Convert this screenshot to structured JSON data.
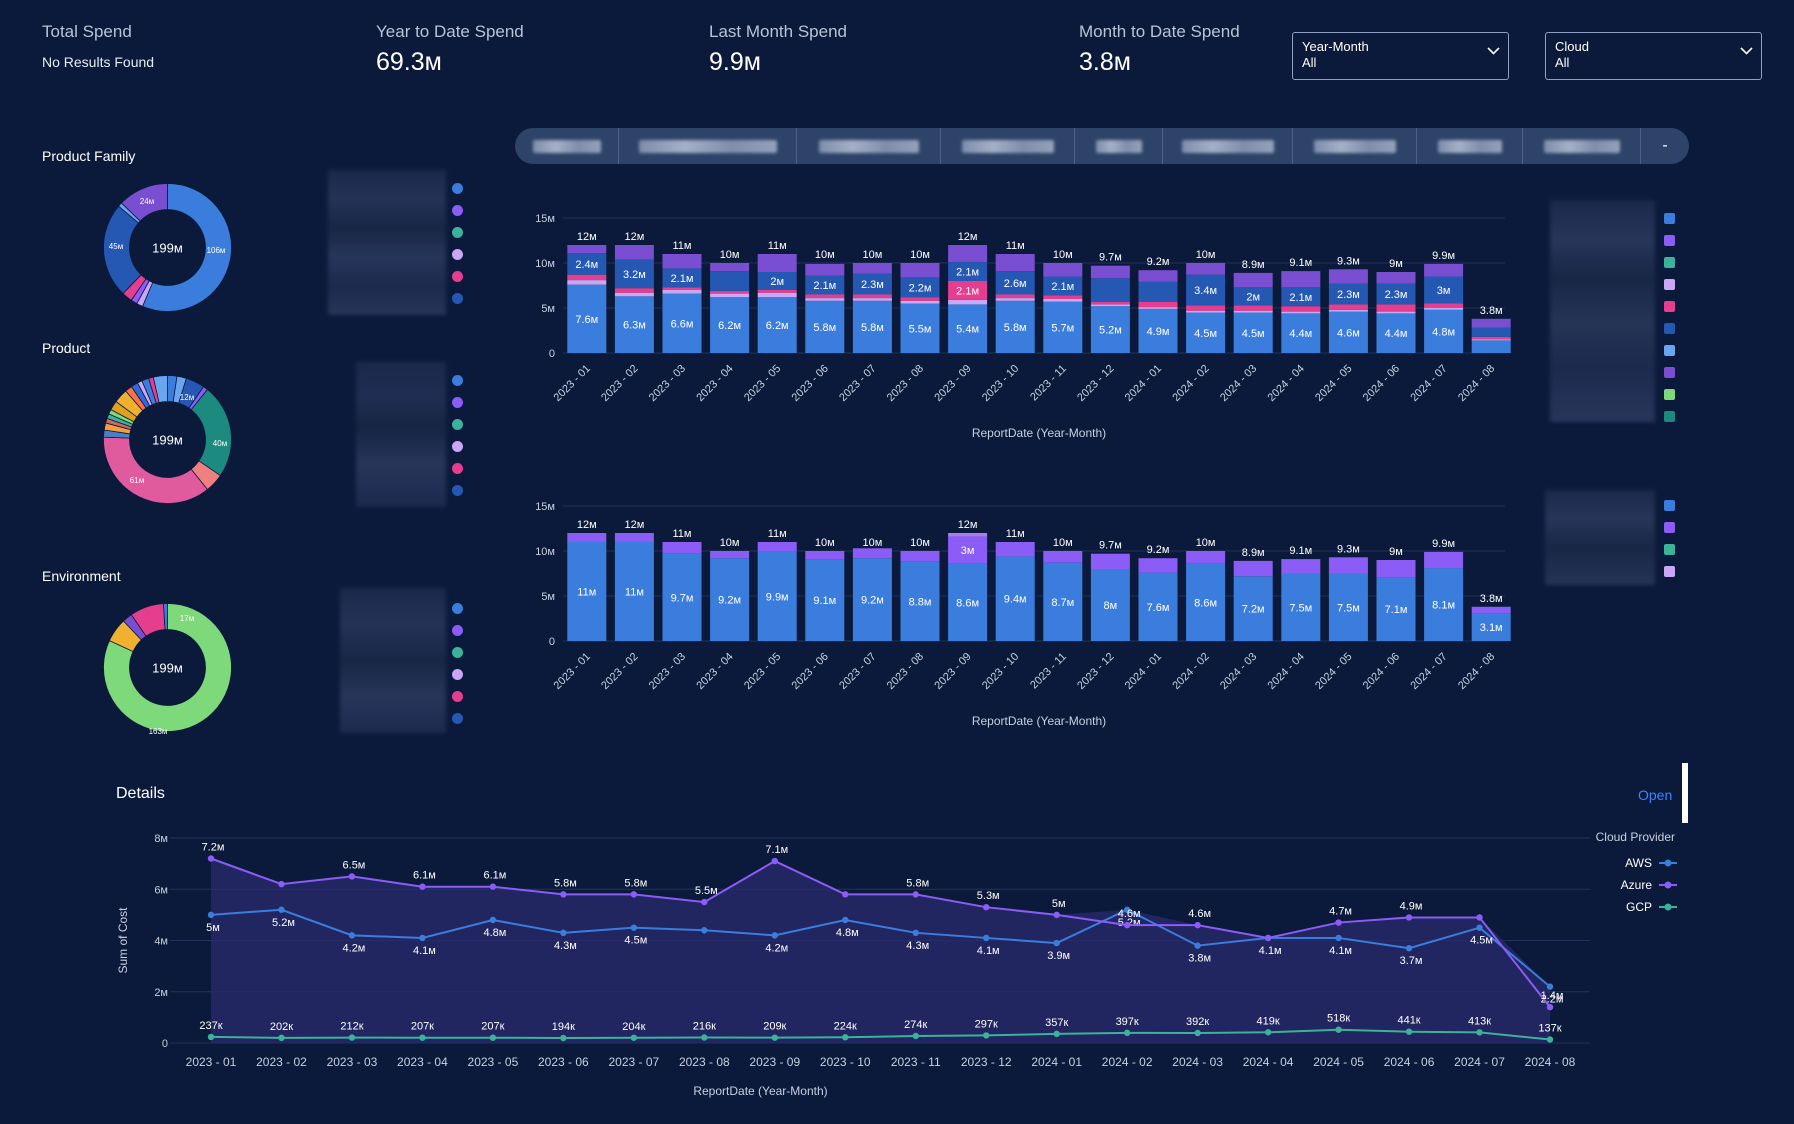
{
  "kpis": [
    {
      "label": "Total Spend",
      "value": "",
      "note": "No Results Found"
    },
    {
      "label": "Year to Date Spend",
      "value": "69.3м"
    },
    {
      "label": "Last Month Spend",
      "value": "9.9м"
    },
    {
      "label": "Month to Date Spend",
      "value": "3.8м"
    }
  ],
  "filters": [
    {
      "label": "Year-Month",
      "value": "All"
    },
    {
      "label": "Cloud",
      "value": "All"
    }
  ],
  "donuts": [
    {
      "title": "Product Family",
      "center": "199м",
      "labels": [
        "106м",
        "45м",
        "24м"
      ]
    },
    {
      "title": "Product",
      "center": "199м",
      "labels": [
        "61м",
        "40м",
        "12м"
      ]
    },
    {
      "title": "Environment",
      "center": "199м",
      "labels": [
        "163м",
        "17м"
      ]
    }
  ],
  "tab_last": "-",
  "colors": {
    "background": "#0b1a3b",
    "blue": "#3b7ddd",
    "dark_blue": "#2458b3",
    "light_blue": "#6aa6f0",
    "purple": "#7a4ed0",
    "violet": "#8b5cf6",
    "lavender": "#c9a7f5",
    "pink": "#e63e8f",
    "teal": "#3bb39b",
    "green": "#7ed97b",
    "link": "#3d84ff"
  },
  "months": [
    "2023 - 01",
    "2023 - 02",
    "2023 - 03",
    "2023 - 04",
    "2023 - 05",
    "2023 - 06",
    "2023 - 07",
    "2023 - 08",
    "2023 - 09",
    "2023 - 10",
    "2023 - 11",
    "2023 - 12",
    "2024 - 01",
    "2024 - 02",
    "2024 - 03",
    "2024 - 04",
    "2024 - 05",
    "2024 - 06",
    "2024 - 07",
    "2024 - 08"
  ],
  "chart_data": [
    {
      "type": "bar",
      "stacked": true,
      "xlabel": "ReportDate (Year-Month)",
      "ylabel": "",
      "ylim": [
        0,
        15
      ],
      "yticks": [
        "0",
        "5м",
        "10м",
        "15м"
      ],
      "totals": [
        12,
        12,
        11,
        10,
        11,
        10,
        10,
        10,
        12,
        11,
        10,
        9.7,
        9.2,
        10,
        8.9,
        9.1,
        9.3,
        9,
        9.9,
        3.8
      ],
      "total_labels": [
        "12м",
        "12м",
        "11м",
        "10м",
        "11м",
        "10м",
        "10м",
        "10м",
        "12м",
        "11м",
        "10м",
        "9.7м",
        "9.2м",
        "10м",
        "8.9м",
        "9.1м",
        "9.3м",
        "9м",
        "9.9м",
        "3.8м"
      ],
      "series": [
        {
          "values": [
            7.6,
            6.3,
            6.6,
            6.2,
            6.2,
            5.8,
            5.8,
            5.5,
            5.4,
            5.8,
            5.7,
            5.2,
            4.9,
            4.5,
            4.5,
            4.4,
            4.6,
            4.4,
            4.8,
            1.4
          ],
          "labels": [
            "7.6м",
            "6.3м",
            "6.6м",
            "6.2м",
            "6.2м",
            "5.8м",
            "5.8м",
            "5.5м",
            "5.4м",
            "5.8м",
            "5.7м",
            "5.2м",
            "4.9м",
            "4.5м",
            "4.5м",
            "4.4м",
            "4.6м",
            "4.4м",
            "4.8м",
            ""
          ]
        },
        {
          "values": [
            0.5,
            0.4,
            0.4,
            0.4,
            0.5,
            0.3,
            0.3,
            0.3,
            0.5,
            0.3,
            0.3,
            0.2,
            0.2,
            0.2,
            0.2,
            0.2,
            0.2,
            0.2,
            0.2,
            0.1
          ],
          "labels": []
        },
        {
          "values": [
            0.6,
            0.5,
            0.3,
            0.3,
            0.3,
            0.4,
            0.4,
            0.4,
            2.1,
            0.4,
            0.4,
            0.3,
            0.6,
            0.6,
            0.6,
            0.6,
            0.6,
            0.8,
            0.5,
            0.3
          ],
          "labels": [
            "",
            "",
            "",
            "",
            "",
            "",
            "",
            "",
            "2.1м",
            "",
            "",
            "",
            "",
            "",
            "",
            "",
            "",
            "",
            "",
            ""
          ]
        },
        {
          "values": [
            2.4,
            3.2,
            2.1,
            2.2,
            2,
            2.1,
            2.3,
            2.2,
            2.1,
            2.6,
            2.1,
            2.6,
            2.2,
            3.4,
            2,
            2.1,
            2.3,
            2.3,
            3,
            1
          ],
          "labels": [
            "2.4м",
            "3.2м",
            "2.1м",
            "",
            "2м",
            "2.1м",
            "2.3м",
            "2.2м",
            "2.1м",
            "2.6м",
            "2.1м",
            "",
            "",
            "3.4м",
            "2м",
            "2.1м",
            "2.3м",
            "2.3м",
            "3м",
            ""
          ]
        },
        {
          "values": [
            0.9,
            1.6,
            1.6,
            0.9,
            2,
            1.3,
            1.2,
            1.6,
            1.9,
            1.9,
            1.5,
            1.4,
            1.3,
            1.3,
            1.6,
            1.8,
            1.6,
            1.3,
            1.4,
            1
          ]
        }
      ]
    },
    {
      "type": "bar",
      "stacked": true,
      "xlabel": "ReportDate (Year-Month)",
      "ylabel": "",
      "ylim": [
        0,
        15
      ],
      "yticks": [
        "0",
        "5м",
        "10м",
        "15м"
      ],
      "total_labels": [
        "12м",
        "12м",
        "11м",
        "10м",
        "11м",
        "10м",
        "10м",
        "10м",
        "12м",
        "11м",
        "10м",
        "9.7м",
        "9.2м",
        "10м",
        "8.9м",
        "9.1м",
        "9.3м",
        "9м",
        "9.9м",
        "3.8м"
      ],
      "totals": [
        12,
        12,
        11,
        10,
        11,
        10,
        10,
        10,
        12,
        11,
        10,
        9.7,
        9.2,
        10,
        8.9,
        9.1,
        9.3,
        9,
        9.9,
        3.8
      ],
      "series": [
        {
          "values": [
            11,
            11,
            9.7,
            9.2,
            9.9,
            9.1,
            9.2,
            8.8,
            8.6,
            9.4,
            8.7,
            8,
            7.6,
            8.6,
            7.2,
            7.5,
            7.5,
            7.1,
            8.1,
            3.1
          ],
          "labels": [
            "11м",
            "11м",
            "9.7м",
            "9.2м",
            "9.9м",
            "9.1м",
            "9.2м",
            "8.8м",
            "8.6м",
            "9.4м",
            "8.7м",
            "8м",
            "7.6м",
            "8.6м",
            "7.2м",
            "7.5м",
            "7.5м",
            "7.1м",
            "8.1м",
            "3.1м"
          ]
        },
        {
          "values": [
            1,
            1,
            1.3,
            0.8,
            1.1,
            0.9,
            1.1,
            1.2,
            3,
            1.6,
            1.3,
            1.7,
            1.6,
            1.4,
            1.7,
            1.6,
            1.8,
            1.9,
            1.8,
            0.7
          ],
          "labels": [
            "",
            "",
            "",
            "",
            "",
            "",
            "",
            "",
            "3м",
            "",
            "",
            "",
            "",
            "",
            "",
            "",
            "",
            "",
            "",
            ""
          ]
        },
        {
          "values": [
            0,
            0,
            0,
            0,
            0,
            0,
            0,
            0,
            0.4,
            0,
            0,
            0,
            0,
            0,
            0,
            0,
            0,
            0,
            0,
            0
          ]
        }
      ]
    },
    {
      "type": "line",
      "xlabel": "ReportDate (Year-Month)",
      "ylabel": "Sum of Cost",
      "ylim": [
        0,
        8
      ],
      "yticks": [
        "0",
        "2м",
        "4м",
        "6м",
        "8м"
      ],
      "legend_title": "Cloud Provider",
      "legend_position": "right",
      "series": [
        {
          "name": "AWS",
          "values": [
            5,
            5.2,
            4.2,
            4.1,
            4.8,
            4.3,
            4.5,
            4.4,
            4.2,
            4.8,
            4.3,
            4.1,
            3.9,
            5.2,
            3.8,
            4.1,
            4.1,
            3.7,
            4.5,
            2.2
          ],
          "labels": [
            "5м",
            "5.2м",
            "4.2м",
            "4.1м",
            "4.8м",
            "4.3м",
            "4.5м",
            "",
            "4.2м",
            "4.8м",
            "4.3м",
            "4.1м",
            "3.9м",
            "5.2м",
            "3.8м",
            "4.1м",
            "4.1м",
            "3.7м",
            "4.5м",
            "2.2м"
          ]
        },
        {
          "name": "Azure",
          "values": [
            7.2,
            6.2,
            6.5,
            6.1,
            6.1,
            5.8,
            5.8,
            5.5,
            7.1,
            5.8,
            5.8,
            5.3,
            5,
            4.6,
            4.6,
            4.1,
            4.7,
            4.9,
            4.9,
            1.4
          ],
          "labels": [
            "7.2м",
            "",
            "6.5м",
            "6.1м",
            "6.1м",
            "5.8м",
            "5.8м",
            "5.5м",
            "7.1м",
            "",
            "5.8м",
            "5.3м",
            "5м",
            "4.6м",
            "4.6м",
            "",
            "4.7м",
            "4.9м",
            "",
            "1.4м"
          ]
        },
        {
          "name": "GCP",
          "values": [
            0.237,
            0.202,
            0.212,
            0.207,
            0.207,
            0.194,
            0.204,
            0.216,
            0.209,
            0.224,
            0.274,
            0.297,
            0.357,
            0.397,
            0.392,
            0.419,
            0.518,
            0.441,
            0.413,
            0.137
          ],
          "labels": [
            "237к",
            "202к",
            "212к",
            "207к",
            "207к",
            "194к",
            "204к",
            "216к",
            "209к",
            "224к",
            "274к",
            "297к",
            "357к",
            "397к",
            "392к",
            "419к",
            "518к",
            "441к",
            "413к",
            "137к"
          ]
        }
      ]
    }
  ],
  "details": {
    "title": "Details",
    "open_label": "Open"
  }
}
